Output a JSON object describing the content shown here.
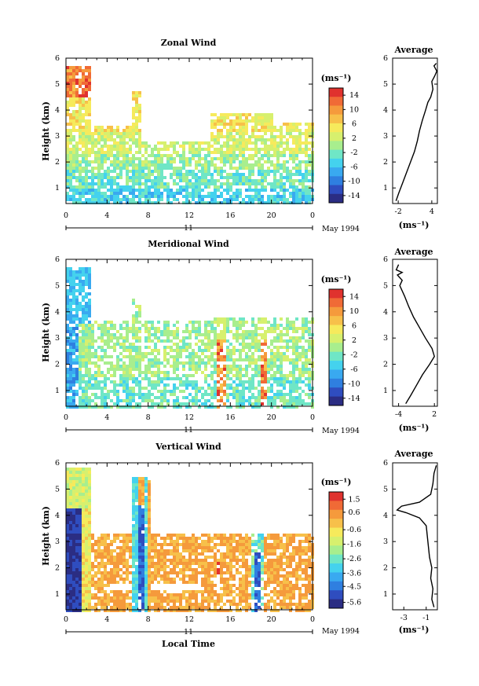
{
  "chart_data": {
    "type": "heatmap",
    "shared": {
      "time_ticks": [
        "0",
        "4",
        "8",
        "12",
        "16",
        "20",
        "0"
      ],
      "time_range_hours": [
        0,
        24
      ],
      "day_label": "11",
      "month_label": "May 1994",
      "x_label": "Local Time",
      "y_label": "Height (km)",
      "height_range_km": [
        0.4,
        6.0
      ],
      "height_ticks": [
        "1",
        "2",
        "3",
        "4",
        "5",
        "6"
      ],
      "unit_label": "(ms⁻¹)",
      "avg_title": "Average",
      "avg_xlabel": "(ms⁻¹)"
    },
    "panels": [
      {
        "title": "Zonal Wind",
        "colorbar_ticks": [
          "14",
          "10",
          "6",
          "2",
          "-2",
          "-6",
          "-10",
          "-14"
        ],
        "colorbar_range": [
          -16,
          16
        ],
        "avg_xticks": [
          "-2",
          "4"
        ],
        "avg_xrange": [
          -3,
          5
        ],
        "average_profile": [
          [
            0.5,
            -2.4
          ],
          [
            0.8,
            -1.9
          ],
          [
            1.2,
            -1.2
          ],
          [
            1.6,
            -0.5
          ],
          [
            2.0,
            0.2
          ],
          [
            2.4,
            0.9
          ],
          [
            2.8,
            1.4
          ],
          [
            3.2,
            1.8
          ],
          [
            3.6,
            2.3
          ],
          [
            4.0,
            2.9
          ],
          [
            4.3,
            3.3
          ],
          [
            4.5,
            3.8
          ],
          [
            4.8,
            4.2
          ],
          [
            5.1,
            4.0
          ],
          [
            5.3,
            4.5
          ],
          [
            5.5,
            4.9
          ],
          [
            5.7,
            4.4
          ],
          [
            5.8,
            4.8
          ]
        ]
      },
      {
        "title": "Meridional Wind",
        "colorbar_ticks": [
          "14",
          "10",
          "6",
          "2",
          "-2",
          "-6",
          "-10",
          "-14"
        ],
        "colorbar_range": [
          -16,
          16
        ],
        "avg_xticks": [
          "-4",
          "2"
        ],
        "avg_xrange": [
          -5,
          2.5
        ],
        "average_profile": [
          [
            0.5,
            -2.8
          ],
          [
            0.8,
            -2.0
          ],
          [
            1.2,
            -1.0
          ],
          [
            1.6,
            0.0
          ],
          [
            2.0,
            1.2
          ],
          [
            2.3,
            2.0
          ],
          [
            2.6,
            1.6
          ],
          [
            3.0,
            0.5
          ],
          [
            3.4,
            -0.5
          ],
          [
            3.8,
            -1.5
          ],
          [
            4.2,
            -2.3
          ],
          [
            4.6,
            -3.0
          ],
          [
            5.0,
            -3.8
          ],
          [
            5.2,
            -3.4
          ],
          [
            5.4,
            -4.2
          ],
          [
            5.5,
            -3.4
          ],
          [
            5.6,
            -4.4
          ],
          [
            5.8,
            -4.0
          ]
        ]
      },
      {
        "title": "Vertical Wind",
        "colorbar_ticks": [
          "1.5",
          "0.6",
          "-0.6",
          "-1.6",
          "-2.6",
          "-3.6",
          "-4.5",
          "-5.6"
        ],
        "colorbar_range": [
          -6,
          2
        ],
        "avg_xticks": [
          "-3",
          "-1"
        ],
        "avg_xrange": [
          -4,
          0
        ],
        "average_profile": [
          [
            0.5,
            -0.3
          ],
          [
            0.8,
            -0.5
          ],
          [
            1.2,
            -0.4
          ],
          [
            1.6,
            -0.6
          ],
          [
            2.0,
            -0.5
          ],
          [
            2.4,
            -0.7
          ],
          [
            2.8,
            -0.8
          ],
          [
            3.2,
            -0.9
          ],
          [
            3.6,
            -1.0
          ],
          [
            3.9,
            -1.6
          ],
          [
            4.1,
            -2.8
          ],
          [
            4.2,
            -3.6
          ],
          [
            4.35,
            -3.2
          ],
          [
            4.5,
            -1.6
          ],
          [
            4.8,
            -0.6
          ],
          [
            5.2,
            -0.4
          ],
          [
            5.6,
            -0.3
          ],
          [
            5.9,
            -0.1
          ]
        ]
      }
    ]
  }
}
